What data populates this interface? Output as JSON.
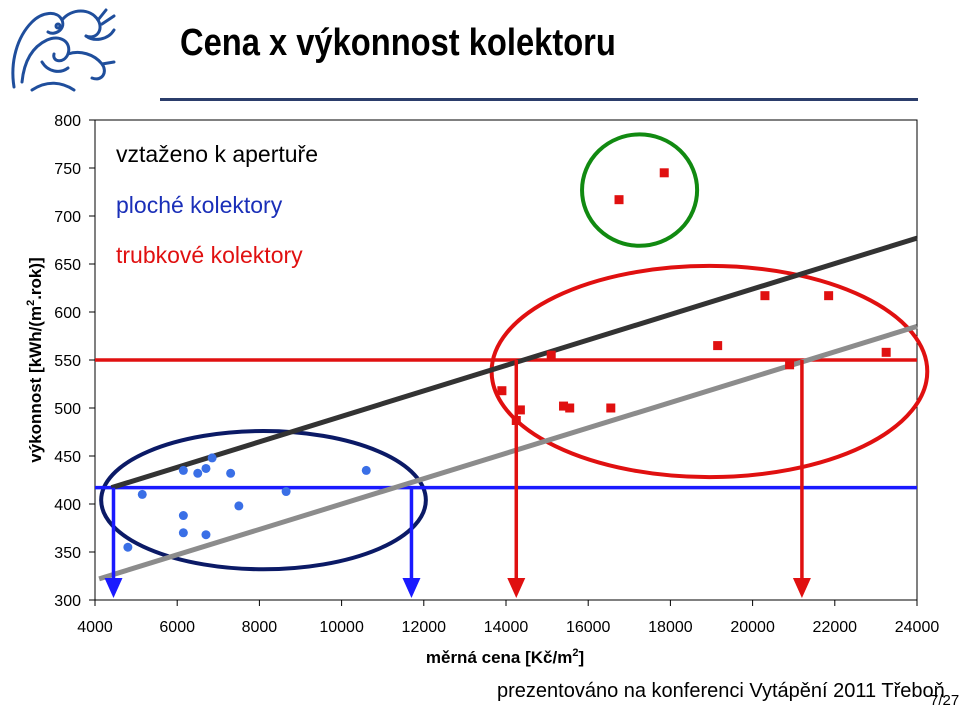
{
  "slide": {
    "title": "Cena x výkonnost kolektoru",
    "footer": "prezentováno na konferenci Vytápění 2011 Třeboň",
    "page_number": "7/27"
  },
  "logo": {
    "icon": "ornamental-lion-logo-icon",
    "color": "#1f4e9c"
  },
  "chart_data": {
    "type": "scatter",
    "xlabel_main": "měrná cena [Kč/m",
    "xlabel_sup": "2",
    "xlabel_tail": "]",
    "ylabel_main": "výkonnost [kWh/(m",
    "ylabel_sup": "2",
    "ylabel_tail": ".rok)]",
    "xlim": [
      4000,
      24000
    ],
    "ylim": [
      300,
      800
    ],
    "x_ticks": [
      4000,
      6000,
      8000,
      10000,
      12000,
      14000,
      16000,
      18000,
      20000,
      22000,
      24000
    ],
    "y_ticks": [
      300,
      350,
      400,
      450,
      500,
      550,
      600,
      650,
      700,
      750,
      800
    ],
    "grid": false,
    "legend": {
      "title": "vztaženo k apertuře",
      "entries": [
        {
          "label": "ploché kolektory",
          "color": "#1a2fb8"
        },
        {
          "label": "trubkové kolektory",
          "color": "#e01010"
        }
      ]
    },
    "series": [
      {
        "name": "ploché kolektory",
        "marker": "circle",
        "color": "#3a6fe6",
        "points": [
          [
            4800,
            355
          ],
          [
            5150,
            410
          ],
          [
            6150,
            435
          ],
          [
            6150,
            388
          ],
          [
            6150,
            370
          ],
          [
            6500,
            432
          ],
          [
            6700,
            437
          ],
          [
            6700,
            368
          ],
          [
            6850,
            448
          ],
          [
            7300,
            432
          ],
          [
            7500,
            398
          ],
          [
            8650,
            413
          ],
          [
            10600,
            435
          ]
        ]
      },
      {
        "name": "trubkové kolektory",
        "marker": "square",
        "color": "#e01010",
        "points": [
          [
            13900,
            518
          ],
          [
            14250,
            487
          ],
          [
            14350,
            498
          ],
          [
            15100,
            555
          ],
          [
            15400,
            502
          ],
          [
            15550,
            500
          ],
          [
            16550,
            500
          ],
          [
            16750,
            717
          ],
          [
            17850,
            745
          ],
          [
            19150,
            565
          ],
          [
            20300,
            617
          ],
          [
            20900,
            545
          ],
          [
            21850,
            617
          ],
          [
            23250,
            558
          ]
        ]
      }
    ],
    "trend_lines": [
      {
        "color": "#333333",
        "from": [
          4400,
          417
        ],
        "to": [
          24000,
          677
        ]
      },
      {
        "color": "#8c8c8c",
        "from": [
          4100,
          322
        ],
        "to": [
          24000,
          585
        ]
      }
    ],
    "reference_lines": [
      {
        "color": "#e01010",
        "y": 550
      },
      {
        "color": "#1a1aff",
        "y": 417
      }
    ],
    "arrows": [
      {
        "color": "#1a1aff",
        "x": 4450,
        "from_y": 417
      },
      {
        "color": "#1a1aff",
        "x": 11700,
        "from_y": 417
      },
      {
        "color": "#e01010",
        "x": 14250,
        "from_y": 550
      },
      {
        "color": "#e01010",
        "x": 21200,
        "from_y": 550
      }
    ],
    "highlight_ellipses": [
      {
        "color": "#0b1a66",
        "cx": 8100,
        "cy": 404,
        "rx": 3950,
        "ry": 72
      },
      {
        "color": "#e01010",
        "cx": 18950,
        "cy": 538,
        "rx": 5300,
        "ry": 110
      },
      {
        "color": "#118a11",
        "cx": 17250,
        "cy": 727,
        "rx": 1400,
        "ry": 58
      }
    ]
  }
}
